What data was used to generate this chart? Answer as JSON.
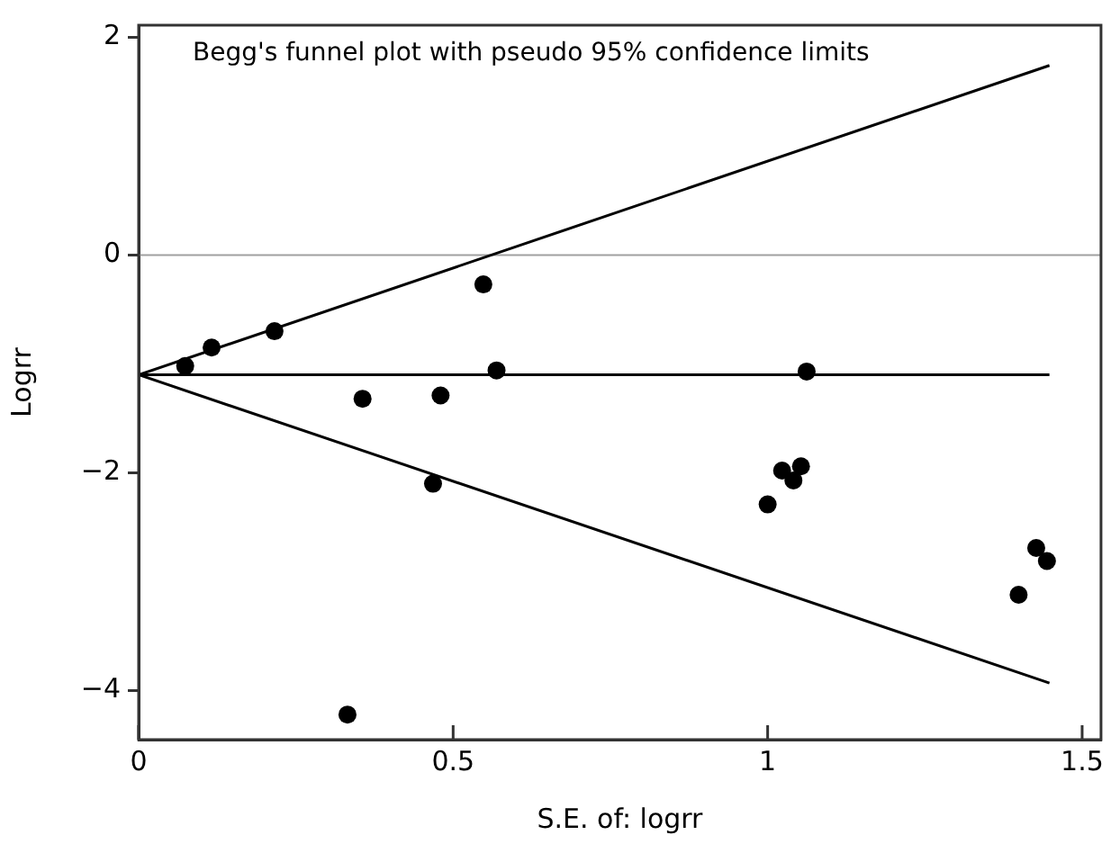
{
  "chart_data": {
    "type": "scatter",
    "title": "Begg's funnel plot with pseudo 95% confidence limits",
    "xlabel": "S.E. of: logrr",
    "ylabel": "Logrr",
    "xlim": [
      0,
      1.53
    ],
    "ylim": [
      -4.45,
      2.11
    ],
    "xticks": [
      0,
      0.5,
      1,
      1.5
    ],
    "yticks": [
      {
        "value": -4,
        "label": "−4"
      },
      {
        "value": -2,
        "label": "−2"
      },
      0,
      2
    ],
    "grid": false,
    "legend": false,
    "marker": "circle",
    "ref_lines": [
      {
        "axis": "y",
        "value": 0,
        "color": "#a0a0a0"
      }
    ],
    "series": [
      {
        "color": "#000000",
        "x": [
          0.074,
          0.116,
          0.216,
          0.548,
          0.569,
          0.356,
          0.48,
          0.468,
          0.332,
          1.062,
          1.0,
          1.023,
          1.041,
          1.053,
          1.427,
          1.444,
          1.399
        ],
        "values": [
          -1.02,
          -0.85,
          -0.7,
          -0.27,
          -1.06,
          -1.32,
          -1.29,
          -2.1,
          -4.22,
          -1.07,
          -2.29,
          -1.98,
          -2.07,
          -1.94,
          -2.69,
          -2.81,
          -3.12
        ]
      },
      {
        "type": "line",
        "color": "#000000",
        "marker": "none",
        "x": [
          0,
          1.448
        ],
        "values": [
          -1.1,
          1.74
        ]
      },
      {
        "type": "line",
        "color": "#000000",
        "marker": "none",
        "x": [
          0,
          1.448
        ],
        "values": [
          -1.1,
          -1.1
        ]
      },
      {
        "type": "line",
        "color": "#000000",
        "marker": "none",
        "x": [
          0,
          1.448
        ],
        "values": [
          -1.1,
          -3.93
        ]
      }
    ]
  }
}
